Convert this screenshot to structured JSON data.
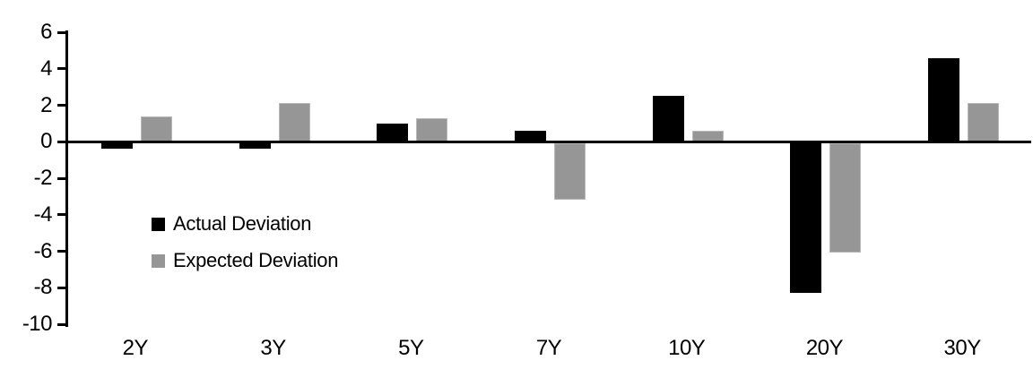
{
  "chart_data": {
    "type": "bar",
    "title": "",
    "xlabel": "",
    "ylabel": "",
    "categories": [
      "2Y",
      "3Y",
      "5Y",
      "7Y",
      "10Y",
      "20Y",
      "30Y"
    ],
    "series": [
      {
        "name": "Actual Deviation",
        "color": "#000000",
        "values": [
          -0.3,
          -0.3,
          1.0,
          0.6,
          2.5,
          -8.2,
          4.6
        ]
      },
      {
        "name": "Expected Deviation",
        "color": "#969696",
        "values": [
          1.4,
          2.1,
          1.3,
          -3.1,
          0.6,
          -6.0,
          2.1
        ]
      }
    ],
    "ylim": [
      -10,
      6
    ],
    "yticks": [
      6,
      4,
      2,
      0,
      -2,
      -4,
      -6,
      -8,
      -10
    ],
    "grid": false,
    "legend_position": "inside-left",
    "axis_color": "#000000",
    "background_color": "#ffffff"
  }
}
